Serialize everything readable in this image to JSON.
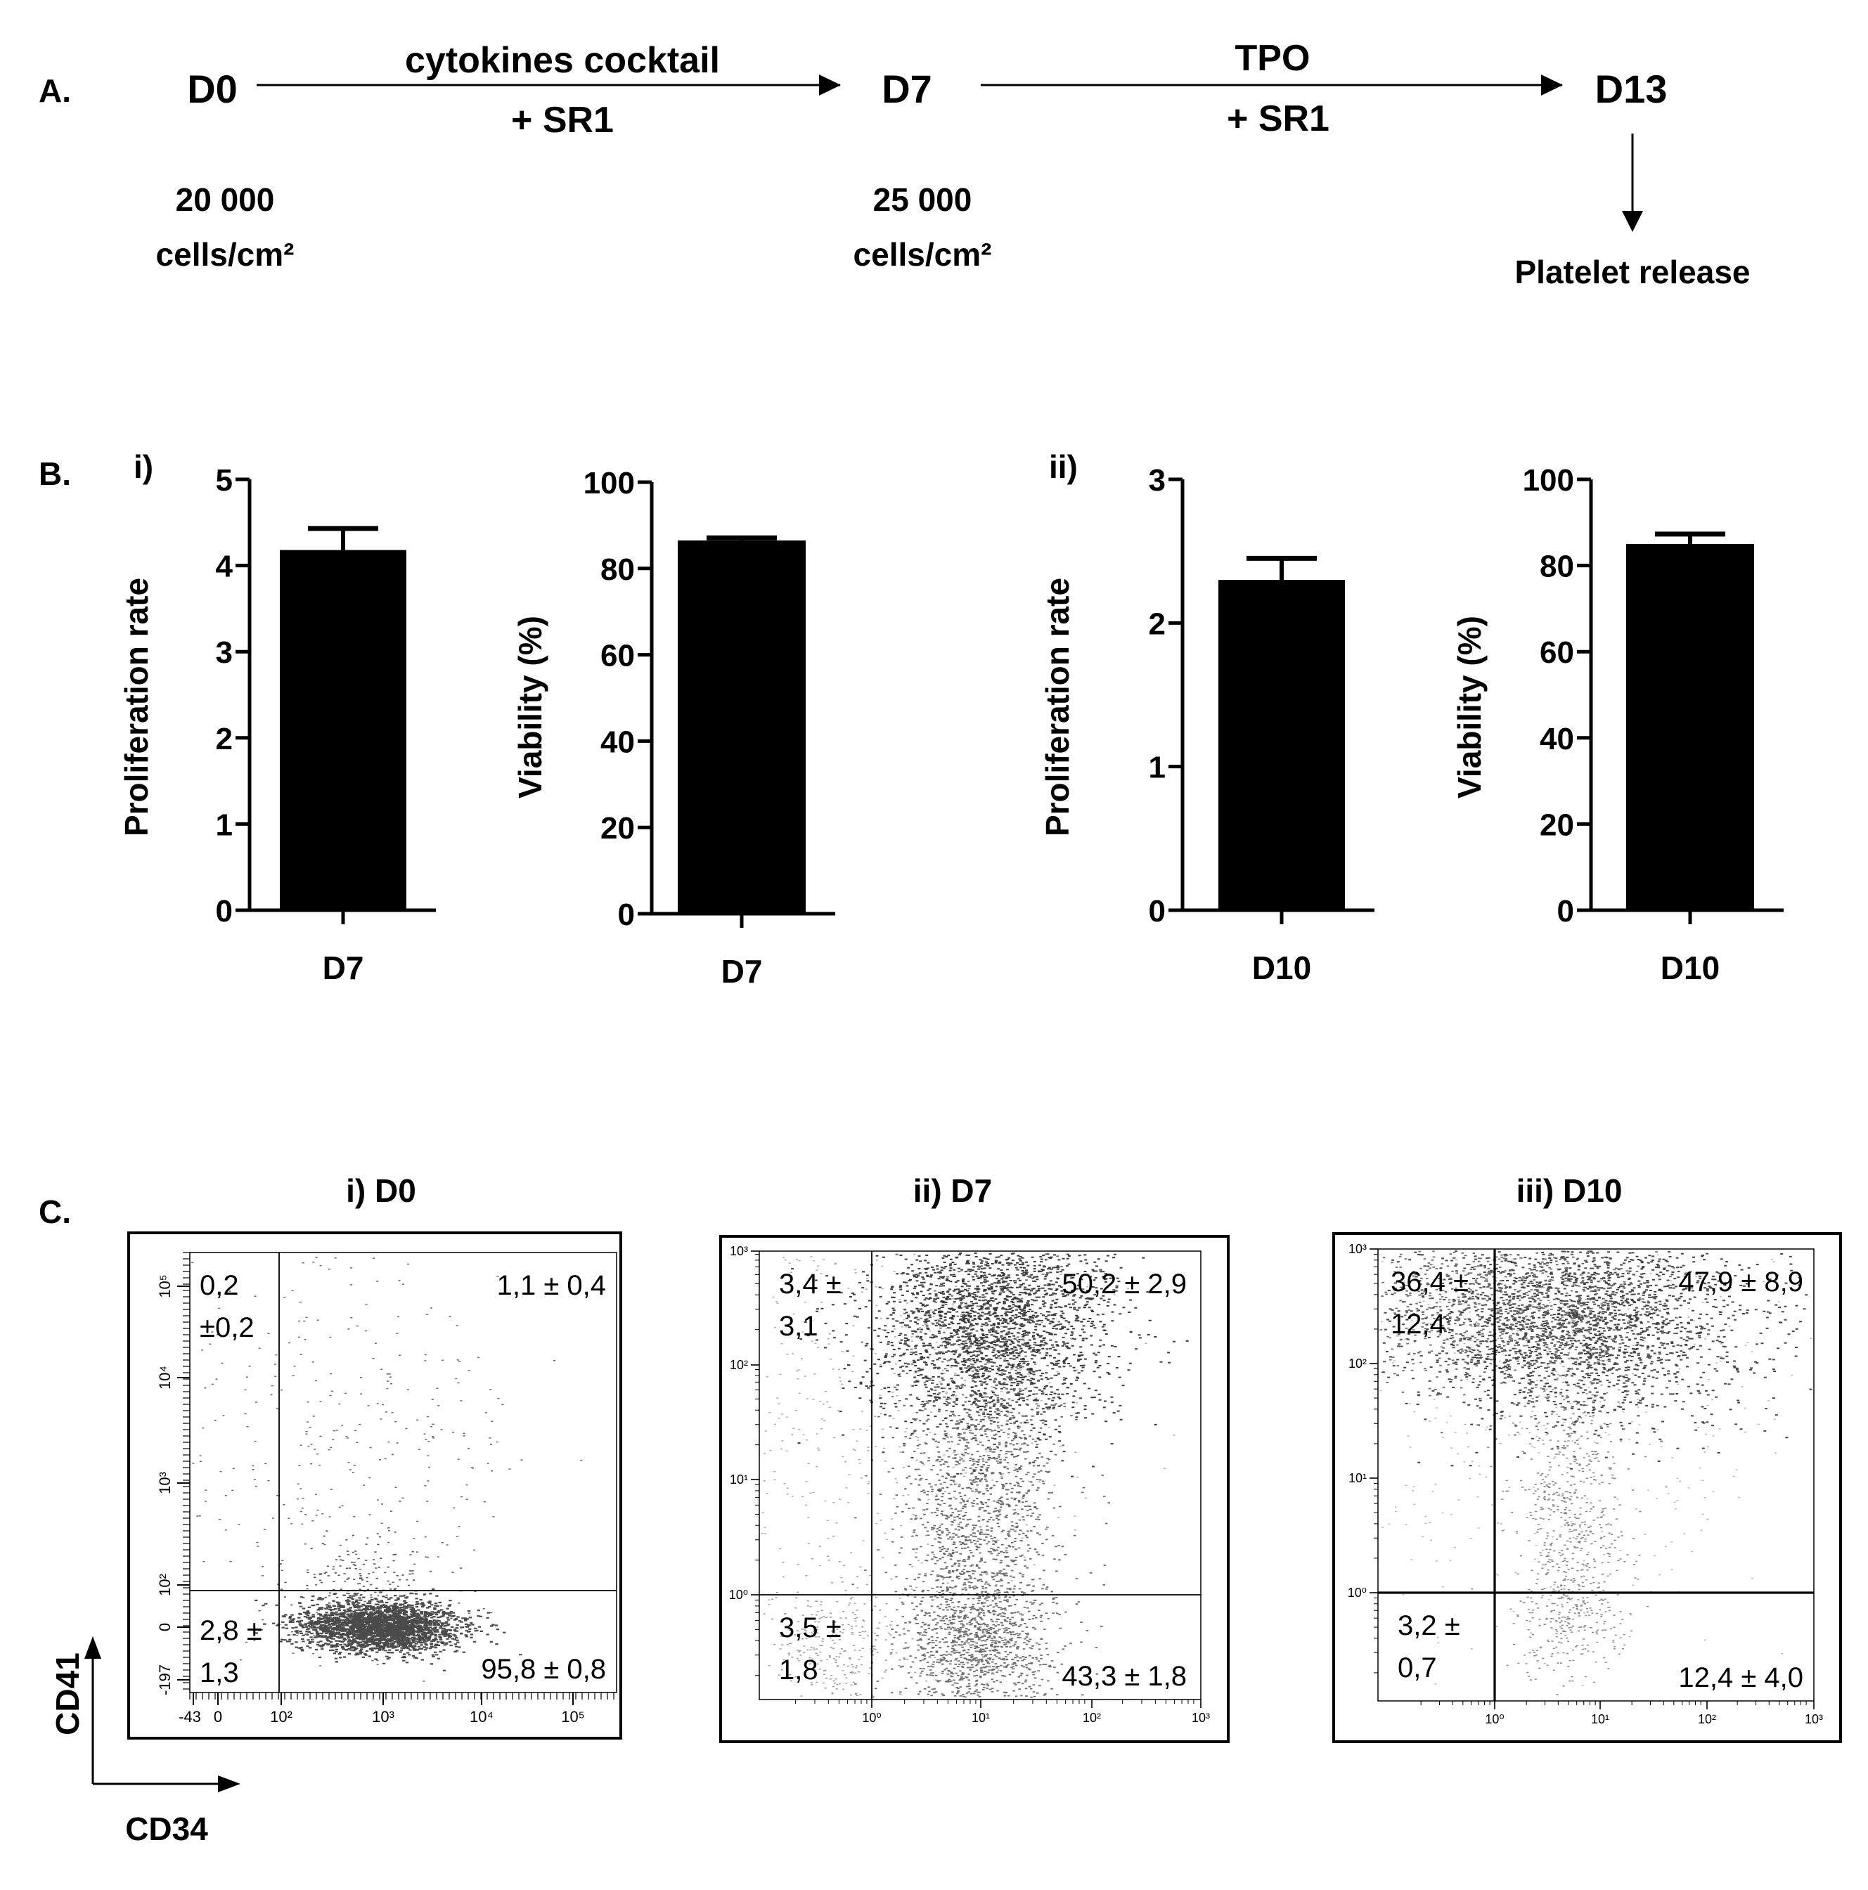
{
  "panel_a": {
    "label": "A.",
    "d0": "D0",
    "d7": "D7",
    "d13": "D13",
    "step1_top": "cytokines cocktail",
    "step1_bottom": "+ SR1",
    "step2_top": "TPO",
    "step2_bottom": "+ SR1",
    "d0_density_1": "20 000",
    "d0_density_2": "cells/cm²",
    "d7_density_1": "25 000",
    "d7_density_2": "cells/cm²",
    "release": "Platelet release"
  },
  "panel_b": {
    "label": "B.",
    "sub_i": "i)",
    "sub_ii": "ii)"
  },
  "panel_c": {
    "label": "C.",
    "y_axis": "CD41",
    "x_axis": "CD34",
    "titles": [
      "i) D0",
      "ii) D7",
      "iii) D10"
    ],
    "d0_ticks_x": [
      "-43",
      "0",
      "10²",
      "10³",
      "10⁴",
      "10⁵"
    ],
    "d0_ticks_y": [
      "-197",
      "0",
      "10²",
      "10³",
      "10⁴",
      "10⁵"
    ],
    "log_ticks": [
      "10⁰",
      "10¹",
      "10²",
      "10³"
    ],
    "quadrants": [
      {
        "ul_1": "0,2",
        "ul_2": "±0,2",
        "ur": "1,1 ± 0,4",
        "ll_1": "2,8 ±",
        "ll_2": "1,3",
        "lr": "95,8 ± 0,8"
      },
      {
        "ul_1": "3,4 ±",
        "ul_2": "3,1",
        "ur": "50,2 ± 2,9",
        "ll_1": "3,5 ±",
        "ll_2": "1,8",
        "lr": "43,3 ± 1,8"
      },
      {
        "ul_1": "36,4 ±",
        "ul_2": "12,4",
        "ur": "47,9 ± 8,9",
        "ll_1": "3,2 ±",
        "ll_2": "0,7",
        "lr": "12,4 ± 4,0"
      }
    ]
  },
  "chart_data": [
    {
      "type": "bar",
      "categories": [
        "D7"
      ],
      "values": [
        4.18
      ],
      "errors": [
        0.25
      ],
      "xlabel": "",
      "ylabel": "Proliferation rate",
      "ylim": [
        0,
        5
      ],
      "yticks": [
        "0",
        "1",
        "2",
        "3",
        "4",
        "5"
      ]
    },
    {
      "type": "bar",
      "categories": [
        "D7"
      ],
      "values": [
        86.5
      ],
      "errors": [
        0.6
      ],
      "xlabel": "",
      "ylabel": "Viability (%)",
      "ylim": [
        0,
        100
      ],
      "yticks": [
        "0",
        "20",
        "40",
        "60",
        "80",
        "100"
      ]
    },
    {
      "type": "bar",
      "categories": [
        "D10"
      ],
      "values": [
        2.3
      ],
      "errors": [
        0.15
      ],
      "xlabel": "",
      "ylabel": "Proliferation rate",
      "ylim": [
        0,
        3
      ],
      "yticks": [
        "0",
        "1",
        "2",
        "3"
      ]
    },
    {
      "type": "bar",
      "categories": [
        "D10"
      ],
      "values": [
        85
      ],
      "errors": [
        2.3
      ],
      "xlabel": "",
      "ylabel": "Viability (%)",
      "ylim": [
        0,
        100
      ],
      "yticks": [
        "0",
        "20",
        "40",
        "60",
        "80",
        "100"
      ]
    }
  ]
}
